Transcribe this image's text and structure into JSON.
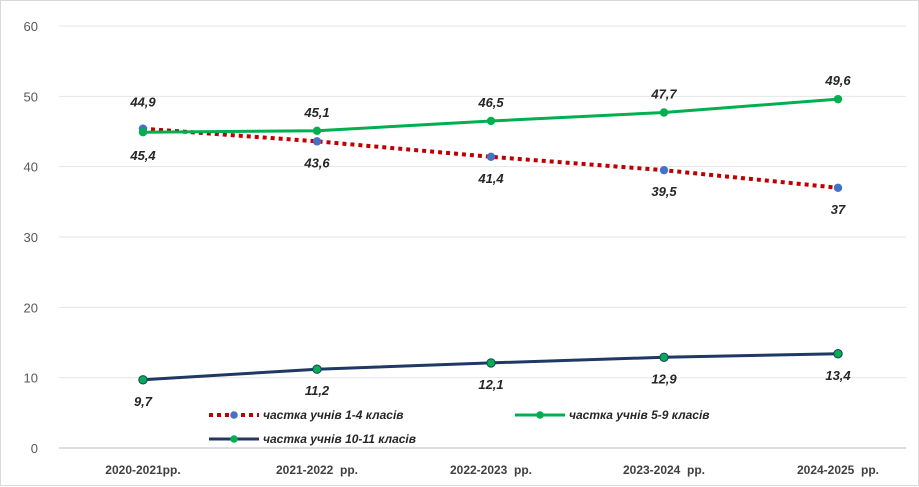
{
  "chart_data": {
    "type": "line",
    "categories": [
      "2020-2021рр.",
      "2021-2022  рр.",
      "2022-2023  рр.",
      "2023-2024  рр.",
      "2024-2025  рр."
    ],
    "ylim": [
      0,
      60
    ],
    "yticks": [
      0,
      10,
      20,
      30,
      40,
      50,
      60
    ],
    "grid": true,
    "legend_position": "bottom-left",
    "series": [
      {
        "name": "частка учнів 1-4 класів",
        "values": [
          45.4,
          43.6,
          41.4,
          39.5,
          37
        ],
        "labels": [
          "45,4",
          "43,6",
          "41,4",
          "39,5",
          "37"
        ],
        "color": "#c00000",
        "marker_color": "#4472c4",
        "style": "dotted"
      },
      {
        "name": "частка учнів 5-9 класів",
        "values": [
          44.9,
          45.1,
          46.5,
          47.7,
          49.6
        ],
        "labels": [
          "44,9",
          "45,1",
          "46,5",
          "47,7",
          "49,6"
        ],
        "color": "#00b050",
        "marker_color": "#00b050",
        "style": "solid"
      },
      {
        "name": "частка учнів 10-11 класів",
        "values": [
          9.7,
          11.2,
          12.1,
          12.9,
          13.4
        ],
        "labels": [
          "9,7",
          "11,2",
          "12,1",
          "12,9",
          "13,4"
        ],
        "color": "#1f3864",
        "marker_color": "#00b050",
        "style": "solid"
      }
    ]
  }
}
